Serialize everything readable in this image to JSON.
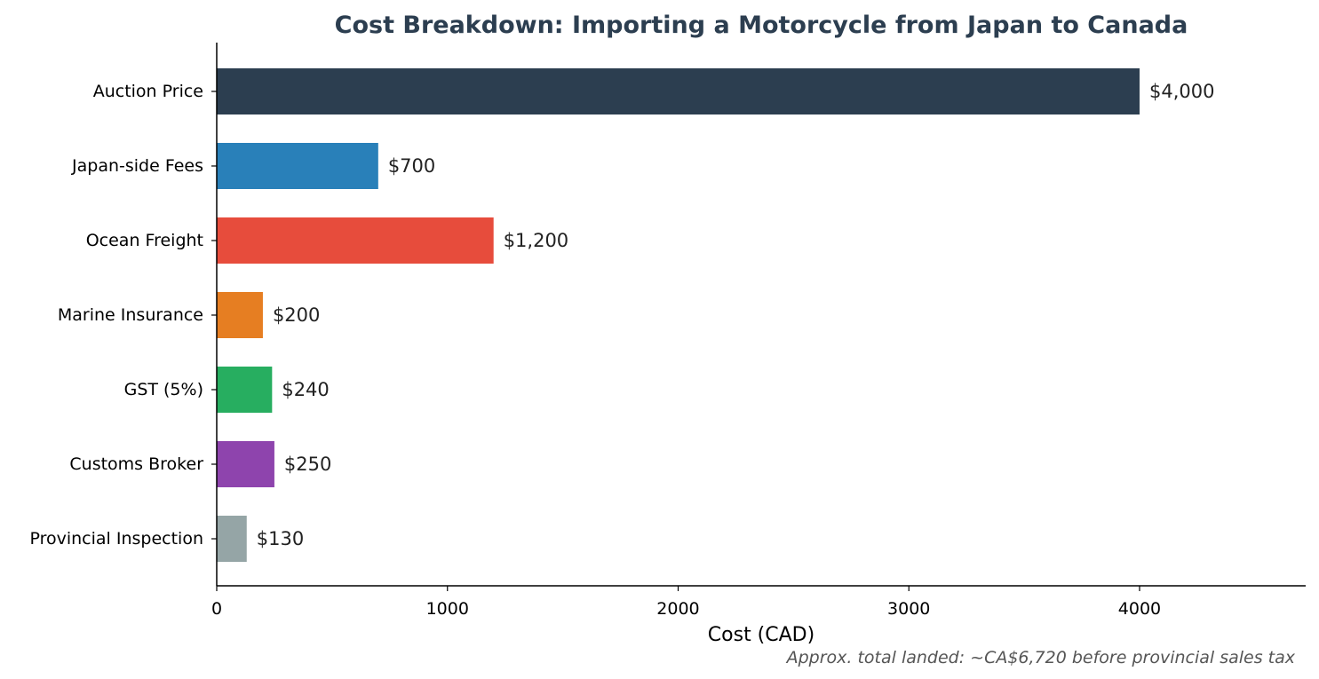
{
  "chart_data": {
    "type": "bar",
    "orientation": "horizontal",
    "title": "Cost Breakdown: Importing a Motorcycle from Japan to Canada",
    "xlabel": "Cost (CAD)",
    "ylabel": "",
    "xlim": [
      0,
      4720
    ],
    "xticks": [
      0,
      1000,
      2000,
      3000,
      4000
    ],
    "grid": false,
    "categories": [
      "Auction Price",
      "Japan-side Fees",
      "Ocean Freight",
      "Marine Insurance",
      "GST (5%)",
      "Customs Broker",
      "Provincial Inspection"
    ],
    "values": [
      4000,
      700,
      1200,
      200,
      240,
      250,
      130
    ],
    "value_labels": [
      "$4,000",
      "$700",
      "$1,200",
      "$200",
      "$240",
      "$250",
      "$130"
    ],
    "colors": [
      "#2c3e50",
      "#2980b9",
      "#e74c3c",
      "#e67e22",
      "#27ae60",
      "#8e44ad",
      "#95a5a6"
    ],
    "footnote": "Approx. total landed: ~CA$6,720 before provincial sales tax"
  }
}
